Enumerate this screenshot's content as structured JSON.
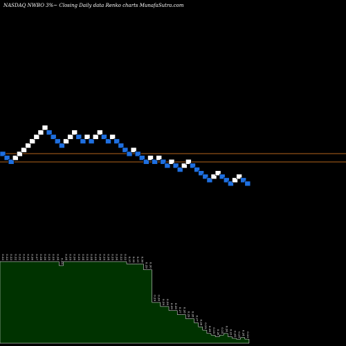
{
  "header": {
    "title": "NASDAQ NWBO 3%~  Closing Daily data  Renko  charts MunafaSutra.com"
  },
  "colors": {
    "background": "#000000",
    "up_brick": "#ffffff",
    "down_brick": "#1e6fe0",
    "level_line": "#b5651d",
    "volume_fill": "#003300",
    "volume_stroke": "#ffffff",
    "label": "#ffffff"
  },
  "chart_data": {
    "type": "renko",
    "title": "NASDAQ NWBO 3%~  Closing Daily data  Renko  charts MunafaSutra.com",
    "brick_size_percent": 3,
    "reference_levels": [
      0.318,
      0.289
    ],
    "bricks": [
      {
        "close": 0.318,
        "dir": "down"
      },
      {
        "close": 0.309,
        "dir": "down"
      },
      {
        "close": 0.3,
        "dir": "down"
      },
      {
        "close": 0.309,
        "dir": "up"
      },
      {
        "close": 0.318,
        "dir": "up"
      },
      {
        "close": 0.327,
        "dir": "up"
      },
      {
        "close": 0.337,
        "dir": "up"
      },
      {
        "close": 0.347,
        "dir": "up"
      },
      {
        "close": 0.357,
        "dir": "up"
      },
      {
        "close": 0.367,
        "dir": "up"
      },
      {
        "close": 0.378,
        "dir": "up"
      },
      {
        "close": 0.367,
        "dir": "down"
      },
      {
        "close": 0.357,
        "dir": "down"
      },
      {
        "close": 0.347,
        "dir": "down"
      },
      {
        "close": 0.337,
        "dir": "down"
      },
      {
        "close": 0.347,
        "dir": "up"
      },
      {
        "close": 0.357,
        "dir": "up"
      },
      {
        "close": 0.367,
        "dir": "up"
      },
      {
        "close": 0.357,
        "dir": "down"
      },
      {
        "close": 0.347,
        "dir": "down"
      },
      {
        "close": 0.357,
        "dir": "up"
      },
      {
        "close": 0.347,
        "dir": "down"
      },
      {
        "close": 0.357,
        "dir": "up"
      },
      {
        "close": 0.367,
        "dir": "up"
      },
      {
        "close": 0.357,
        "dir": "down"
      },
      {
        "close": 0.347,
        "dir": "down"
      },
      {
        "close": 0.357,
        "dir": "up"
      },
      {
        "close": 0.347,
        "dir": "down"
      },
      {
        "close": 0.337,
        "dir": "down"
      },
      {
        "close": 0.327,
        "dir": "down"
      },
      {
        "close": 0.318,
        "dir": "down"
      },
      {
        "close": 0.327,
        "dir": "up"
      },
      {
        "close": 0.318,
        "dir": "down"
      },
      {
        "close": 0.309,
        "dir": "down"
      },
      {
        "close": 0.3,
        "dir": "down"
      },
      {
        "close": 0.309,
        "dir": "up"
      },
      {
        "close": 0.3,
        "dir": "down"
      },
      {
        "close": 0.309,
        "dir": "up"
      },
      {
        "close": 0.3,
        "dir": "down"
      },
      {
        "close": 0.291,
        "dir": "down"
      },
      {
        "close": 0.3,
        "dir": "up"
      },
      {
        "close": 0.291,
        "dir": "down"
      },
      {
        "close": 0.282,
        "dir": "down"
      },
      {
        "close": 0.291,
        "dir": "up"
      },
      {
        "close": 0.3,
        "dir": "up"
      },
      {
        "close": 0.291,
        "dir": "down"
      },
      {
        "close": 0.282,
        "dir": "down"
      },
      {
        "close": 0.274,
        "dir": "down"
      },
      {
        "close": 0.266,
        "dir": "down"
      },
      {
        "close": 0.258,
        "dir": "down"
      },
      {
        "close": 0.266,
        "dir": "up"
      },
      {
        "close": 0.274,
        "dir": "up"
      },
      {
        "close": 0.266,
        "dir": "down"
      },
      {
        "close": 0.258,
        "dir": "down"
      },
      {
        "close": 0.25,
        "dir": "down"
      },
      {
        "close": 0.258,
        "dir": "up"
      },
      {
        "close": 0.266,
        "dir": "up"
      },
      {
        "close": 0.258,
        "dir": "down"
      },
      {
        "close": 0.25,
        "dir": "down"
      }
    ],
    "volume_labels": [
      "0.33",
      "0.33",
      "0.33",
      "0.32",
      "0.32",
      "0.33",
      "0.35",
      "0.36",
      "0.37",
      "0.38",
      "0.36",
      "0.35",
      "0.35",
      "0.34",
      "0.33",
      "0.34",
      "0.35",
      "0.36",
      "0.35",
      "0.34",
      "0.35",
      "0.34",
      "0.35",
      "0.36",
      "0.35",
      "0.34",
      "0.35",
      "0.34",
      "0.33",
      "0.32",
      "0.31",
      "0.32",
      "0.31",
      "0.30",
      "0.29",
      "0.30",
      "0.29",
      "0.30",
      "0.29",
      "0.28",
      "0.29",
      "0.28",
      "0.27",
      "0.28",
      "0.29",
      "0.28",
      "0.27",
      "0.26",
      "0.25",
      "0.24",
      "0.25",
      "0.26",
      "0.25",
      "0.24",
      "0.23",
      "0.24",
      "0.25",
      "0.24",
      "0.23"
    ],
    "volume_levels": [
      1.0,
      1.0,
      1.0,
      1.0,
      1.0,
      1.0,
      1.0,
      1.0,
      1.0,
      1.0,
      1.0,
      1.0,
      1.0,
      1.0,
      0.95,
      1.0,
      1.0,
      1.0,
      1.0,
      1.0,
      1.0,
      1.0,
      1.0,
      1.0,
      1.0,
      1.0,
      1.0,
      1.0,
      1.0,
      1.0,
      0.97,
      0.97,
      0.97,
      0.97,
      0.9,
      0.9,
      0.5,
      0.5,
      0.45,
      0.45,
      0.4,
      0.4,
      0.35,
      0.35,
      0.3,
      0.3,
      0.25,
      0.2,
      0.16,
      0.12,
      0.1,
      0.08,
      0.1,
      0.12,
      0.08,
      0.06,
      0.05,
      0.07,
      0.05
    ]
  }
}
